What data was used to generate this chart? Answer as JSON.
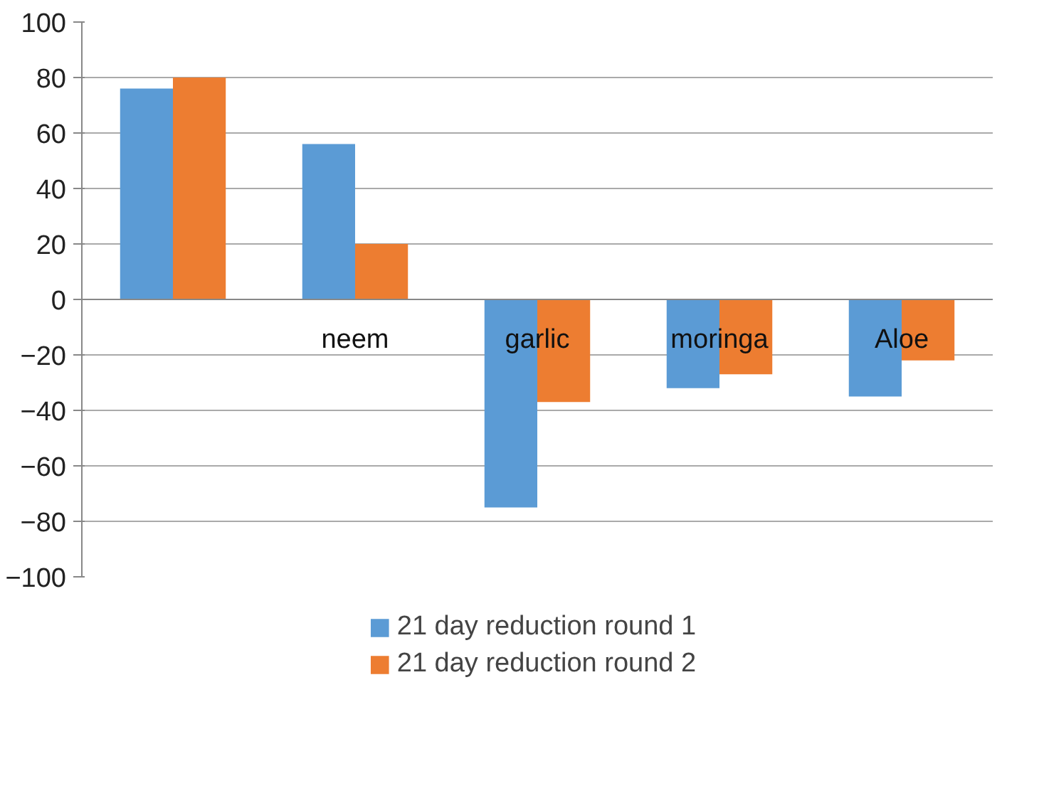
{
  "chart_data": {
    "type": "bar",
    "categories": [
      null,
      "neem",
      "garlic",
      "moringa",
      "Aloe"
    ],
    "series": [
      {
        "name": "21 day reduction round 1",
        "color": "#5b9bd5",
        "values": [
          76,
          56,
          -75,
          -32,
          -35
        ]
      },
      {
        "name": "21 day reduction round 2",
        "color": "#ed7d31",
        "values": [
          80,
          20,
          -37,
          -27,
          -22
        ]
      }
    ],
    "ylim": [
      -100,
      100
    ],
    "yticks": [
      -100,
      -80,
      -60,
      -40,
      -20,
      0,
      20,
      40,
      60,
      80,
      100
    ],
    "grid": "y",
    "legend": "bottom"
  }
}
